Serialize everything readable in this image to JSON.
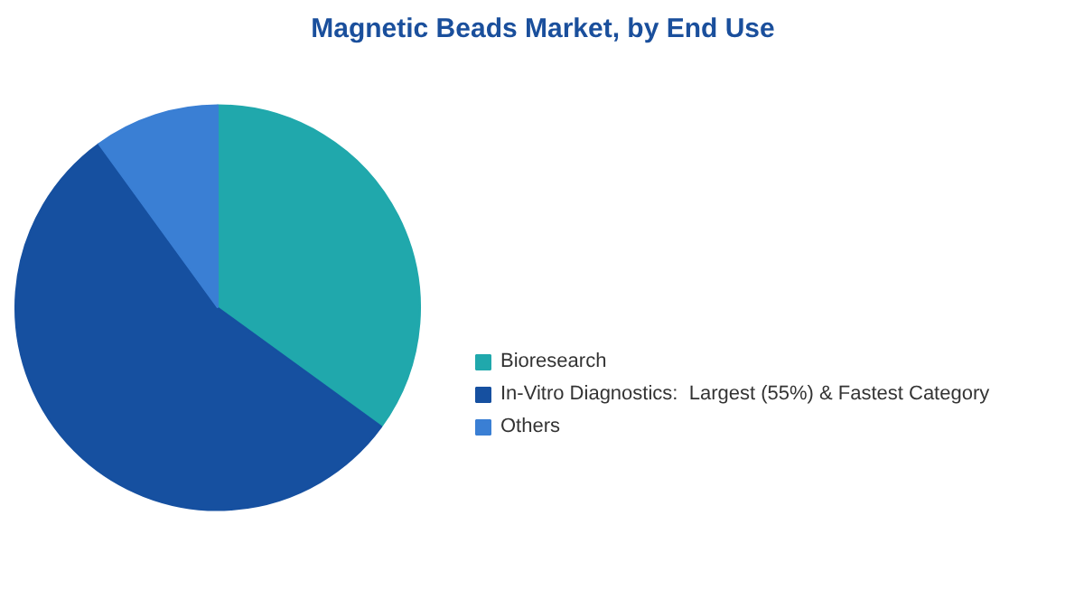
{
  "chart_data": {
    "type": "pie",
    "title": "Magnetic Beads Market, by End Use",
    "categories": [
      "Bioresearch",
      "In-Vitro Diagnostics:  Largest (55%) & Fastest Category",
      "Others"
    ],
    "values": [
      35,
      55,
      10
    ],
    "colors": [
      "#20a8ac",
      "#1650a0",
      "#3a7fd4"
    ],
    "legend": "right"
  }
}
